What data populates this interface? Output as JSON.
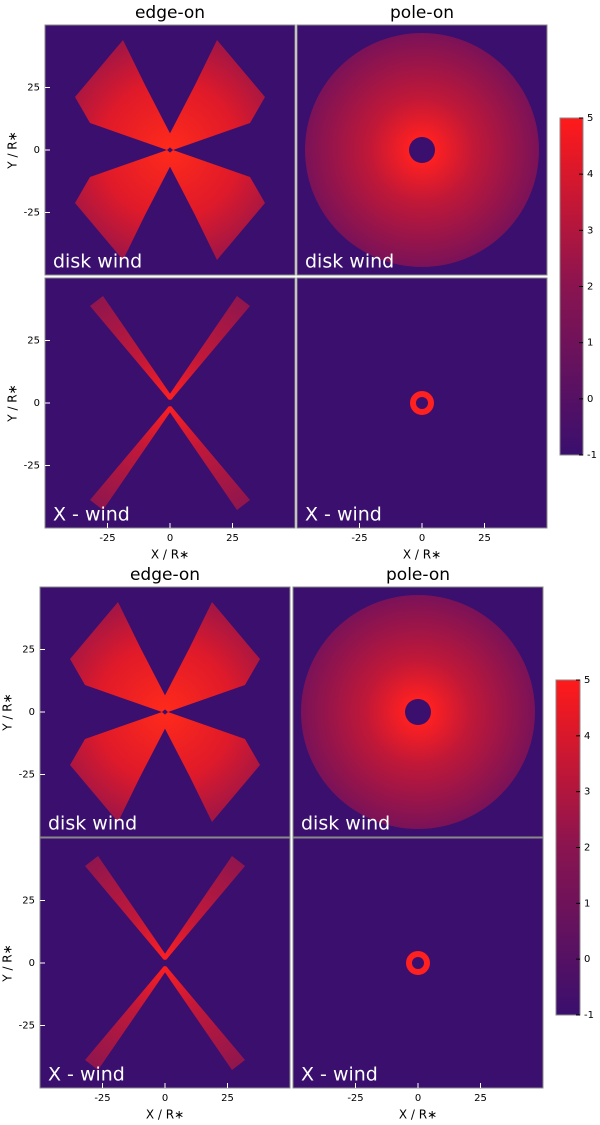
{
  "chart_data": [
    {
      "type": "image",
      "column_titles": [
        "edge-on",
        "pole-on"
      ],
      "row_labels": [
        "disk wind",
        "X - wind"
      ],
      "xlabel": "X / R∗",
      "ylabel": "Y / R∗",
      "xlim": [
        -50,
        50
      ],
      "ylim": [
        -50,
        50
      ],
      "xticks": [
        -25,
        0,
        25
      ],
      "yticks": [
        -25,
        0,
        25
      ],
      "colorbar": {
        "lim": [
          -1,
          5
        ],
        "ticks": [
          -1,
          0,
          1,
          2,
          3,
          4,
          5
        ]
      }
    },
    {
      "type": "image",
      "column_titles": [
        "edge-on",
        "pole-on"
      ],
      "row_labels": [
        "disk wind",
        "X - wind"
      ],
      "xlabel": "X / R∗",
      "ylabel": "Y / R∗",
      "xlim": [
        -50,
        50
      ],
      "ylim": [
        -50,
        50
      ],
      "xticks": [
        -25,
        0,
        25
      ],
      "yticks": [
        -25,
        0,
        25
      ],
      "colorbar": {
        "lim": [
          -1,
          5
        ],
        "ticks": [
          -1,
          0,
          1,
          2,
          3,
          4,
          5
        ]
      }
    }
  ]
}
